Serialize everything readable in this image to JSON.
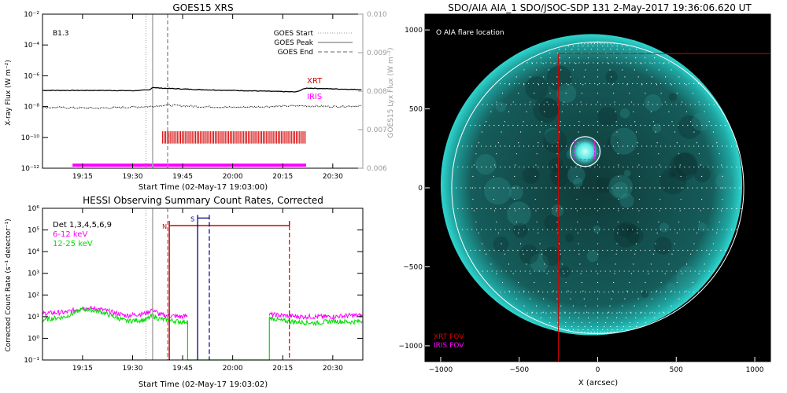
{
  "chart_data": [
    {
      "id": "goes",
      "type": "line",
      "title": "GOES15 XRS",
      "xlabel": "Start Time (02-May-17 19:03:00)",
      "ylabel": "X-ray Flux (W m⁻²)",
      "ylabel2": "GOES15 Lyx Flux (W m⁻²)",
      "class_label": "B1.3",
      "x_ticks": [
        "19:15",
        "19:30",
        "19:45",
        "20:00",
        "20:15",
        "20:30"
      ],
      "x_tick_minutes": [
        15,
        30,
        45,
        60,
        75,
        90
      ],
      "xlim_minutes": [
        3,
        99
      ],
      "ylim_exp": [
        -12,
        -2
      ],
      "y_ticks": [
        "10⁻¹²",
        "10⁻¹⁰",
        "10⁻⁸",
        "10⁻⁶",
        "10⁻⁴",
        "10⁻²"
      ],
      "y_tick_exp": [
        -12,
        -10,
        -8,
        -6,
        -4,
        -2
      ],
      "y2lim": [
        0.006,
        0.01
      ],
      "y2_ticks": [
        "0.006",
        "0.007",
        "0.008",
        "0.009",
        "0.010"
      ],
      "y2_tick_vals": [
        0.006,
        0.007,
        0.008,
        0.009,
        0.01
      ],
      "legend": [
        "GOES Start",
        "GOES Peak",
        "GOES End"
      ],
      "event_lines": {
        "start": 34,
        "peak": 36,
        "end": 40.5
      },
      "series": [
        {
          "name": "XRT",
          "color": "#d40000",
          "kind": "ticks",
          "start": 39,
          "end": 82,
          "exp_low": -10.4,
          "exp_high": -9.6
        },
        {
          "name": "IRIS",
          "color": "#ff00ff",
          "kind": "bar",
          "start": 12,
          "end": 82,
          "exp": -11.8
        },
        {
          "name": "",
          "color": "#000000",
          "x": [
            3,
            20,
            30,
            35,
            36,
            38,
            50,
            60,
            70,
            79,
            82,
            90,
            99
          ],
          "exp": [
            -6.95,
            -6.95,
            -6.97,
            -6.92,
            -6.75,
            -6.8,
            -6.9,
            -6.95,
            -7.0,
            -7.05,
            -6.8,
            -6.85,
            -6.9
          ]
        },
        {
          "name": "",
          "color": "#000000",
          "dotted": true,
          "x": [
            3,
            20,
            35,
            40,
            50,
            60,
            70,
            80,
            90,
            99
          ],
          "exp": [
            -8.05,
            -8.1,
            -8.0,
            -7.9,
            -8.0,
            -8.05,
            -8.0,
            -7.95,
            -8.0,
            -7.95
          ]
        }
      ]
    },
    {
      "id": "hessi",
      "type": "line",
      "title": "HESSI Observing Summary Count Rates, Corrected",
      "xlabel": "Start Time (02-May-17 19:03:02)",
      "ylabel": "Corrected Count Rate (s⁻¹ detector⁻¹)",
      "x_ticks": [
        "19:15",
        "19:30",
        "19:45",
        "20:00",
        "20:15",
        "20:30"
      ],
      "x_tick_minutes": [
        15,
        30,
        45,
        60,
        75,
        90
      ],
      "xlim_minutes": [
        3,
        99
      ],
      "ylim_exp": [
        -1,
        6
      ],
      "y_ticks": [
        "10⁻¹",
        "10⁰",
        "10¹",
        "10²",
        "10³",
        "10⁴",
        "10⁵",
        "10⁶"
      ],
      "y_tick_exp": [
        -1,
        0,
        1,
        2,
        3,
        4,
        5,
        6
      ],
      "legend": [
        {
          "label": "Det 1,3,4,5,6,9",
          "color": "#000000"
        },
        {
          "label": "6-12 keV",
          "color": "#ff00ff"
        },
        {
          "label": "12-25 keV",
          "color": "#00dd00"
        }
      ],
      "markers": [
        {
          "label": "N",
          "color": "#d40000",
          "x": 41,
          "end": 77
        },
        {
          "label": "S",
          "color": "#00008b",
          "x": 49.5,
          "end": 53
        }
      ],
      "event_lines": {
        "start": 34,
        "peak": 36,
        "end": 40.5
      },
      "series": [
        {
          "name": "6-12 keV",
          "color": "#ff00ff",
          "x": [
            3,
            10,
            15,
            20,
            28,
            34,
            36,
            38,
            40,
            45,
            46.5
          ],
          "exp": [
            1.15,
            1.2,
            1.4,
            1.35,
            1.05,
            1.15,
            1.35,
            1.1,
            1.05,
            1.0,
            1.05
          ]
        },
        {
          "name": "12-25 keV",
          "color": "#00dd00",
          "x": [
            3,
            10,
            15,
            20,
            28,
            34,
            36,
            38,
            40,
            45,
            46.5
          ],
          "exp": [
            0.85,
            1.0,
            1.35,
            1.25,
            0.8,
            0.85,
            1.05,
            0.9,
            0.85,
            0.75,
            0.8
          ]
        },
        {
          "name": "6-12 keV",
          "color": "#ff00ff",
          "x": [
            71,
            75,
            80,
            85,
            90,
            95,
            99
          ],
          "exp": [
            1.1,
            1.05,
            1.0,
            1.0,
            1.0,
            1.05,
            1.05
          ]
        },
        {
          "name": "12-25 keV",
          "color": "#00dd00",
          "x": [
            71,
            75,
            80,
            85,
            90,
            95,
            99
          ],
          "exp": [
            0.95,
            0.8,
            0.75,
            0.7,
            0.8,
            0.75,
            0.8
          ]
        }
      ]
    },
    {
      "id": "aia",
      "type": "scatter",
      "title": "SDO/AIA AIA_1 SDO/JSOC-SDP 131  2-May-2017 19:36:06.620 UT",
      "xlabel": "X (arcsec)",
      "ylabel": "",
      "xlim": [
        -1100,
        1100
      ],
      "ylim": [
        -1100,
        1100
      ],
      "x_ticks": [
        -1000,
        -500,
        0,
        500,
        1000
      ],
      "y_ticks": [
        -1000,
        -500,
        0,
        500,
        1000
      ],
      "flare_label": "O AIA flare location",
      "flare": {
        "x": -80,
        "y": 230,
        "r": 95
      },
      "solar_radius": 930,
      "xrt_fov": {
        "x0": -250,
        "x1": 1100,
        "y0": -1100,
        "y1": 850
      },
      "iris_fov": {
        "x0": -150,
        "x1": -20,
        "y0": 180,
        "y1": 295
      },
      "fov_labels": [
        {
          "label": "XRT FOV",
          "color": "#d40000"
        },
        {
          "label": "IRIS FOV",
          "color": "#ff00ff"
        }
      ]
    }
  ]
}
